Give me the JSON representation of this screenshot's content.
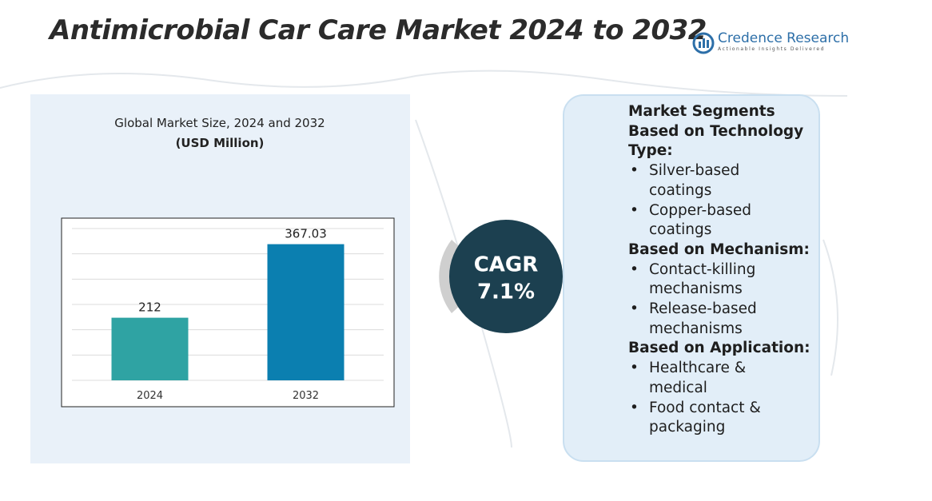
{
  "header": {
    "title": "Antimicrobial Car Care Market 2024 to 2032",
    "logo_name": "Credence Research",
    "logo_tagline": "Actionable Insights Delivered"
  },
  "chart_data": {
    "type": "bar",
    "title": "Global Market Size, 2024 and 2032",
    "subtitle": "(USD Million)",
    "categories": [
      "2024",
      "2032"
    ],
    "values": [
      212,
      367.03
    ],
    "colors": [
      "#2fa3a3",
      "#0b7fb0"
    ],
    "ylim": [
      80,
      400
    ],
    "grid": true
  },
  "cagr": {
    "label": "CAGR",
    "value": "7.1%"
  },
  "segments": {
    "title": "Market Segments",
    "groups": [
      {
        "heading": "Based on Technology Type:",
        "items": [
          "Silver-based coatings",
          "Copper-based coatings"
        ]
      },
      {
        "heading": "Based on Mechanism:",
        "items": [
          "Contact-killing mechanisms",
          "Release-based mechanisms"
        ]
      },
      {
        "heading": "Based on Application:",
        "items": [
          "Healthcare & medical",
          "Food contact & packaging"
        ]
      }
    ]
  }
}
